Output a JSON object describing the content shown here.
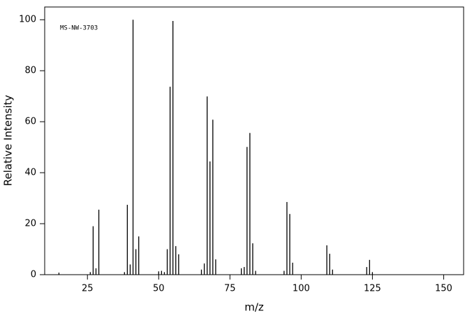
{
  "chart_data": {
    "type": "stem",
    "annotation": "MS-NW-3703",
    "x_label": "m/z",
    "y_label": "Relative Intensity",
    "color": "#000000",
    "x": [
      15,
      26,
      27,
      28,
      29,
      38,
      39,
      40,
      41,
      42,
      43,
      50,
      51,
      52,
      53,
      54,
      55,
      56,
      57,
      65,
      66,
      67,
      68,
      69,
      70,
      79,
      80,
      81,
      82,
      83,
      84,
      94,
      95,
      96,
      97,
      109,
      110,
      111,
      123,
      124,
      125
    ],
    "values": [
      0.8,
      1,
      19,
      2.5,
      25.5,
      1,
      27.4,
      4,
      100,
      10,
      15,
      1.3,
      1.5,
      1,
      10,
      73.7,
      99.5,
      11.2,
      8,
      2,
      4.4,
      69.9,
      44.4,
      60.8,
      6,
      2.5,
      3,
      50.1,
      55.6,
      12.3,
      1.5,
      1.5,
      28.5,
      23.8,
      4.7,
      11.5,
      8.2,
      2,
      3,
      5.8,
      1
    ],
    "xlim": [
      10,
      157
    ],
    "ylim": [
      0,
      105
    ],
    "xticks": [
      25,
      50,
      75,
      100,
      125,
      150
    ],
    "yticks": [
      0,
      20,
      40,
      60,
      80,
      100
    ]
  }
}
